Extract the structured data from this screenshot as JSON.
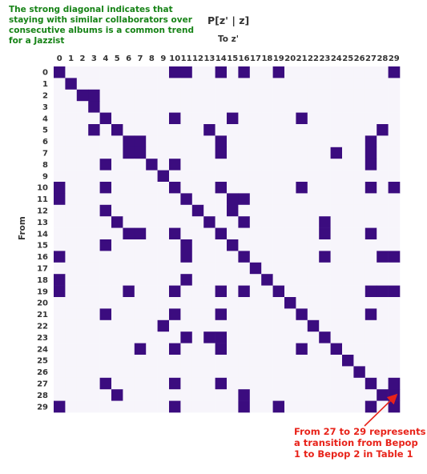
{
  "annotations": {
    "left_note": "The strong diagonal indicates that staying with similar collaborators over consecutive albums is a common trend for a Jazzist",
    "right_note": "From 27 to 29 represents a transition from Bepop 1 to Bepop 2 in Table 1"
  },
  "colors": {
    "filled": "#3b0c7f",
    "empty": "#f7f5fb",
    "note_green": "#178317",
    "note_red": "#e8231a"
  },
  "chart_data": {
    "type": "heatmap",
    "title": "P[z' | z]",
    "xlabel": "To z'",
    "ylabel": "From",
    "x_categories": [
      "0",
      "1",
      "2",
      "3",
      "4",
      "5",
      "6",
      "7",
      "8",
      "9",
      "10",
      "11",
      "12",
      "13",
      "14",
      "15",
      "16",
      "17",
      "18",
      "19",
      "20",
      "21",
      "22",
      "23",
      "24",
      "25",
      "26",
      "27",
      "28",
      "29"
    ],
    "y_categories": [
      "0",
      "1",
      "2",
      "3",
      "4",
      "5",
      "6",
      "7",
      "8",
      "9",
      "10",
      "11",
      "12",
      "13",
      "14",
      "15",
      "16",
      "17",
      "18",
      "19",
      "20",
      "21",
      "22",
      "23",
      "24",
      "25",
      "26",
      "27",
      "28",
      "29"
    ],
    "value_encoding": "1 = dark cell (high transition probability), 0 = light cell",
    "cells": [
      [
        1,
        0,
        0,
        0,
        0,
        0,
        0,
        0,
        0,
        0,
        1,
        1,
        0,
        0,
        1,
        0,
        1,
        0,
        0,
        1,
        0,
        0,
        0,
        0,
        0,
        0,
        0,
        0,
        0,
        1
      ],
      [
        0,
        1,
        0,
        0,
        0,
        0,
        0,
        0,
        0,
        0,
        0,
        0,
        0,
        0,
        0,
        0,
        0,
        0,
        0,
        0,
        0,
        0,
        0,
        0,
        0,
        0,
        0,
        0,
        0,
        0
      ],
      [
        0,
        0,
        1,
        1,
        0,
        0,
        0,
        0,
        0,
        0,
        0,
        0,
        0,
        0,
        0,
        0,
        0,
        0,
        0,
        0,
        0,
        0,
        0,
        0,
        0,
        0,
        0,
        0,
        0,
        0
      ],
      [
        0,
        0,
        0,
        1,
        0,
        0,
        0,
        0,
        0,
        0,
        0,
        0,
        0,
        0,
        0,
        0,
        0,
        0,
        0,
        0,
        0,
        0,
        0,
        0,
        0,
        0,
        0,
        0,
        0,
        0
      ],
      [
        0,
        0,
        0,
        0,
        1,
        0,
        0,
        0,
        0,
        0,
        1,
        0,
        0,
        0,
        0,
        1,
        0,
        0,
        0,
        0,
        0,
        1,
        0,
        0,
        0,
        0,
        0,
        0,
        0,
        0
      ],
      [
        0,
        0,
        0,
        1,
        0,
        1,
        0,
        0,
        0,
        0,
        0,
        0,
        0,
        1,
        0,
        0,
        0,
        0,
        0,
        0,
        0,
        0,
        0,
        0,
        0,
        0,
        0,
        0,
        1,
        0
      ],
      [
        0,
        0,
        0,
        0,
        0,
        0,
        1,
        1,
        0,
        0,
        0,
        0,
        0,
        0,
        1,
        0,
        0,
        0,
        0,
        0,
        0,
        0,
        0,
        0,
        0,
        0,
        0,
        1,
        0,
        0
      ],
      [
        0,
        0,
        0,
        0,
        0,
        0,
        1,
        1,
        0,
        0,
        0,
        0,
        0,
        0,
        1,
        0,
        0,
        0,
        0,
        0,
        0,
        0,
        0,
        0,
        1,
        0,
        0,
        1,
        0,
        0
      ],
      [
        0,
        0,
        0,
        0,
        1,
        0,
        0,
        0,
        1,
        0,
        1,
        0,
        0,
        0,
        0,
        0,
        0,
        0,
        0,
        0,
        0,
        0,
        0,
        0,
        0,
        0,
        0,
        1,
        0,
        0
      ],
      [
        0,
        0,
        0,
        0,
        0,
        0,
        0,
        0,
        0,
        1,
        0,
        0,
        0,
        0,
        0,
        0,
        0,
        0,
        0,
        0,
        0,
        0,
        0,
        0,
        0,
        0,
        0,
        0,
        0,
        0
      ],
      [
        1,
        0,
        0,
        0,
        1,
        0,
        0,
        0,
        0,
        0,
        1,
        0,
        0,
        0,
        1,
        0,
        0,
        0,
        0,
        0,
        0,
        1,
        0,
        0,
        0,
        0,
        0,
        1,
        0,
        1
      ],
      [
        1,
        0,
        0,
        0,
        0,
        0,
        0,
        0,
        0,
        0,
        0,
        1,
        0,
        0,
        0,
        1,
        1,
        0,
        0,
        0,
        0,
        0,
        0,
        0,
        0,
        0,
        0,
        0,
        0,
        0
      ],
      [
        0,
        0,
        0,
        0,
        1,
        0,
        0,
        0,
        0,
        0,
        0,
        0,
        1,
        0,
        0,
        1,
        0,
        0,
        0,
        0,
        0,
        0,
        0,
        0,
        0,
        0,
        0,
        0,
        0,
        0
      ],
      [
        0,
        0,
        0,
        0,
        0,
        1,
        0,
        0,
        0,
        0,
        0,
        0,
        0,
        1,
        0,
        0,
        1,
        0,
        0,
        0,
        0,
        0,
        0,
        1,
        0,
        0,
        0,
        0,
        0,
        0
      ],
      [
        0,
        0,
        0,
        0,
        0,
        0,
        1,
        1,
        0,
        0,
        1,
        0,
        0,
        0,
        1,
        0,
        0,
        0,
        0,
        0,
        0,
        0,
        0,
        1,
        0,
        0,
        0,
        1,
        0,
        0
      ],
      [
        0,
        0,
        0,
        0,
        1,
        0,
        0,
        0,
        0,
        0,
        0,
        1,
        0,
        0,
        0,
        1,
        0,
        0,
        0,
        0,
        0,
        0,
        0,
        0,
        0,
        0,
        0,
        0,
        0,
        0
      ],
      [
        1,
        0,
        0,
        0,
        0,
        0,
        0,
        0,
        0,
        0,
        0,
        1,
        0,
        0,
        0,
        0,
        1,
        0,
        0,
        0,
        0,
        0,
        0,
        1,
        0,
        0,
        0,
        0,
        1,
        1
      ],
      [
        0,
        0,
        0,
        0,
        0,
        0,
        0,
        0,
        0,
        0,
        0,
        0,
        0,
        0,
        0,
        0,
        0,
        1,
        0,
        0,
        0,
        0,
        0,
        0,
        0,
        0,
        0,
        0,
        0,
        0
      ],
      [
        1,
        0,
        0,
        0,
        0,
        0,
        0,
        0,
        0,
        0,
        0,
        1,
        0,
        0,
        0,
        0,
        0,
        0,
        1,
        0,
        0,
        0,
        0,
        0,
        0,
        0,
        0,
        0,
        0,
        0
      ],
      [
        1,
        0,
        0,
        0,
        0,
        0,
        1,
        0,
        0,
        0,
        1,
        0,
        0,
        0,
        1,
        0,
        1,
        0,
        0,
        1,
        0,
        0,
        0,
        0,
        0,
        0,
        0,
        1,
        1,
        1
      ],
      [
        0,
        0,
        0,
        0,
        0,
        0,
        0,
        0,
        0,
        0,
        0,
        0,
        0,
        0,
        0,
        0,
        0,
        0,
        0,
        0,
        1,
        0,
        0,
        0,
        0,
        0,
        0,
        0,
        0,
        0
      ],
      [
        0,
        0,
        0,
        0,
        1,
        0,
        0,
        0,
        0,
        0,
        1,
        0,
        0,
        0,
        1,
        0,
        0,
        0,
        0,
        0,
        0,
        1,
        0,
        0,
        0,
        0,
        0,
        1,
        0,
        0
      ],
      [
        0,
        0,
        0,
        0,
        0,
        0,
        0,
        0,
        0,
        1,
        0,
        0,
        0,
        0,
        0,
        0,
        0,
        0,
        0,
        0,
        0,
        0,
        1,
        0,
        0,
        0,
        0,
        0,
        0,
        0
      ],
      [
        0,
        0,
        0,
        0,
        0,
        0,
        0,
        0,
        0,
        0,
        0,
        1,
        0,
        1,
        1,
        0,
        0,
        0,
        0,
        0,
        0,
        0,
        0,
        1,
        0,
        0,
        0,
        0,
        0,
        0
      ],
      [
        0,
        0,
        0,
        0,
        0,
        0,
        0,
        1,
        0,
        0,
        1,
        0,
        0,
        0,
        1,
        0,
        0,
        0,
        0,
        0,
        0,
        1,
        0,
        0,
        1,
        0,
        0,
        0,
        0,
        0
      ],
      [
        0,
        0,
        0,
        0,
        0,
        0,
        0,
        0,
        0,
        0,
        0,
        0,
        0,
        0,
        0,
        0,
        0,
        0,
        0,
        0,
        0,
        0,
        0,
        0,
        0,
        1,
        0,
        0,
        0,
        0
      ],
      [
        0,
        0,
        0,
        0,
        0,
        0,
        0,
        0,
        0,
        0,
        0,
        0,
        0,
        0,
        0,
        0,
        0,
        0,
        0,
        0,
        0,
        0,
        0,
        0,
        0,
        0,
        1,
        0,
        0,
        0
      ],
      [
        0,
        0,
        0,
        0,
        1,
        0,
        0,
        0,
        0,
        0,
        1,
        0,
        0,
        0,
        1,
        0,
        0,
        0,
        0,
        0,
        0,
        0,
        0,
        0,
        0,
        0,
        0,
        1,
        0,
        1
      ],
      [
        0,
        0,
        0,
        0,
        0,
        1,
        0,
        0,
        0,
        0,
        0,
        0,
        0,
        0,
        0,
        0,
        1,
        0,
        0,
        0,
        0,
        0,
        0,
        0,
        0,
        0,
        0,
        0,
        1,
        1
      ],
      [
        1,
        0,
        0,
        0,
        0,
        0,
        0,
        0,
        0,
        0,
        1,
        0,
        0,
        0,
        0,
        0,
        1,
        0,
        0,
        1,
        0,
        0,
        0,
        0,
        0,
        0,
        0,
        1,
        0,
        1
      ]
    ]
  }
}
